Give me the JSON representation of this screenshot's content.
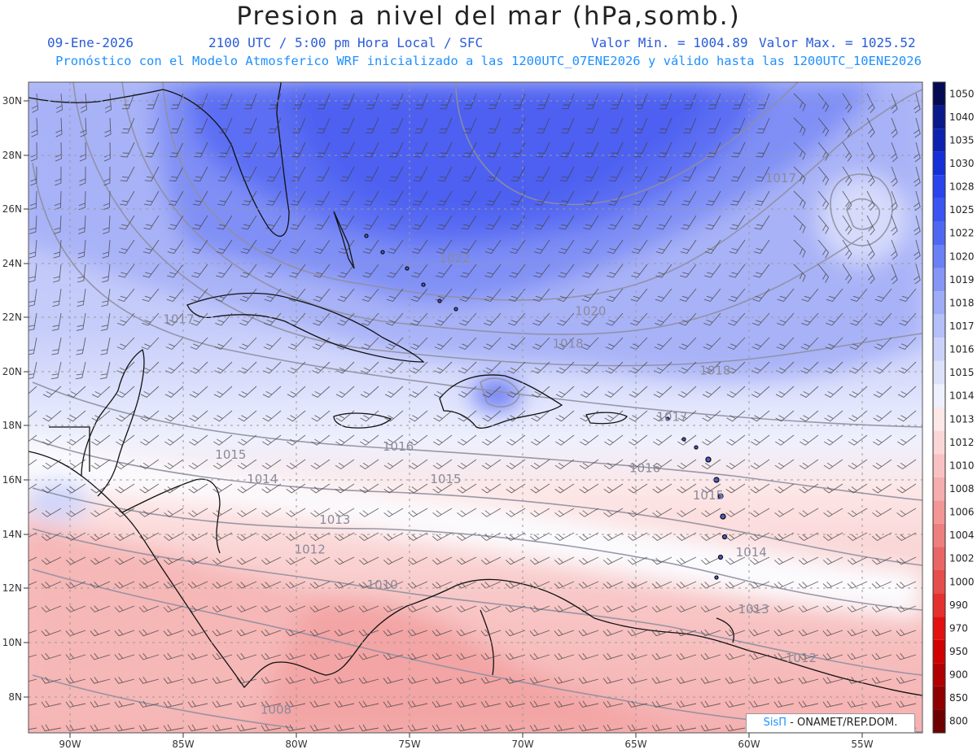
{
  "title": "Presion a nivel del mar (hPa,somb.)",
  "subtitle": {
    "date": "09-Ene-2026",
    "time": "2100 UTC / 5:00 pm Hora Local / SFC",
    "min": "Valor Min. = 1004.89",
    "max": "Valor Max. = 1025.52"
  },
  "model_info": "Pronóstico con el Modelo Atmosferico WRF inicializado a las 1200UTC_07ENE2026 y válido hasta las  1200UTC_10ENE2026",
  "colorbar": {
    "levels": [
      "1050",
      "1040",
      "1035",
      "1030",
      "1028",
      "1025",
      "1022",
      "1020",
      "1019",
      "1018",
      "1017",
      "1016",
      "1015",
      "1014",
      "1013",
      "1012",
      "1010",
      "1008",
      "1006",
      "1004",
      "1002",
      "1000",
      "990",
      "970",
      "950",
      "900",
      "850",
      "800"
    ],
    "colors": [
      "#050a55",
      "#0a1a8a",
      "#0d22b0",
      "#1430d8",
      "#2a44ee",
      "#3a55f2",
      "#4f68f4",
      "#6a80f5",
      "#8596f6",
      "#9eabf7",
      "#b5bff8",
      "#cbd2fa",
      "#dde2fb",
      "#eef0fd",
      "#fde8e8",
      "#fbd6d6",
      "#f8c2c2",
      "#f5adad",
      "#f29696",
      "#ee7f7f",
      "#ea6666",
      "#e64d4d",
      "#e53030",
      "#e21010",
      "#d00000",
      "#b00000",
      "#900000",
      "#6e0000"
    ]
  },
  "axes": {
    "lat_labels": [
      "30N",
      "28N",
      "26N",
      "24N",
      "22N",
      "20N",
      "18N",
      "16N",
      "14N",
      "12N",
      "10N",
      "8N"
    ],
    "lon_labels": [
      "90W",
      "85W",
      "80W",
      "75W",
      "70W",
      "65W",
      "60W",
      "55W"
    ]
  },
  "isobar_labels": [
    {
      "text": "1022",
      "lon": -73.0,
      "lat": 24.05
    },
    {
      "text": "1020",
      "lon": -67.0,
      "lat": 22.1
    },
    {
      "text": "1018",
      "lon": -68.0,
      "lat": 20.9
    },
    {
      "text": "1018",
      "lon": -61.5,
      "lat": 19.9
    },
    {
      "text": "1017",
      "lon": -85.2,
      "lat": 21.8
    },
    {
      "text": "1017",
      "lon": -58.6,
      "lat": 27.0
    },
    {
      "text": "1017",
      "lon": -63.4,
      "lat": 18.2
    },
    {
      "text": "1016",
      "lon": -75.5,
      "lat": 17.1
    },
    {
      "text": "1016",
      "lon": -64.6,
      "lat": 16.3
    },
    {
      "text": "1015",
      "lon": -82.9,
      "lat": 16.8
    },
    {
      "text": "1015",
      "lon": -73.4,
      "lat": 15.9
    },
    {
      "text": "1015",
      "lon": -61.8,
      "lat": 15.3
    },
    {
      "text": "1014",
      "lon": -81.5,
      "lat": 15.9
    },
    {
      "text": "1014",
      "lon": -59.9,
      "lat": 13.2
    },
    {
      "text": "1013",
      "lon": -78.3,
      "lat": 14.4
    },
    {
      "text": "1013",
      "lon": -59.8,
      "lat": 11.1
    },
    {
      "text": "1012",
      "lon": -79.4,
      "lat": 13.3
    },
    {
      "text": "1012",
      "lon": -57.7,
      "lat": 9.3
    },
    {
      "text": "1010",
      "lon": -76.2,
      "lat": 12.0
    },
    {
      "text": "1008",
      "lon": -80.9,
      "lat": 7.4
    }
  ],
  "credit": {
    "brand": "SisΠ",
    "text": " - ONAMET/REP.DOM."
  }
}
